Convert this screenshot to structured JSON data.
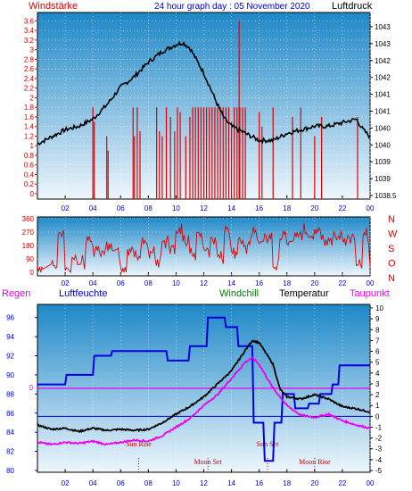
{
  "header": {
    "left_label": "Windstärke",
    "title": "24 hour graph day : 05 November 2020",
    "right_label": "Luftdruck"
  },
  "colors": {
    "wind": "#dd0000",
    "pressure": "#000000",
    "humidity": "#0000dd",
    "windchill": "#008000",
    "temperature": "#000000",
    "dewpoint": "#ee00ee",
    "sky_top": "#1e88c8",
    "sky_bottom": "#eef6fc"
  },
  "chart_data": [
    {
      "type": "line",
      "title": "24 hour graph day : 05 November 2020",
      "x_tick_labels": [
        "02",
        "04",
        "06",
        "08",
        "10",
        "12",
        "14",
        "16",
        "18",
        "20",
        "22",
        "00"
      ],
      "left_axis": {
        "label": "Windstärke",
        "ylim": [
          0,
          3.7
        ],
        "ticks": [
          "0",
          "0.2",
          "0.4",
          "0.6",
          "0.8",
          "1",
          "1.2",
          "1.4",
          "1.6",
          "1.8",
          "2",
          "2.2",
          "2.4",
          "2.6",
          "2.8",
          "3",
          "3.2",
          "3.4",
          "3.6"
        ]
      },
      "right_axis": {
        "label": "Luftdruck",
        "ylim": [
          1038.5,
          1043.5
        ],
        "ticks": [
          "1043",
          "1043",
          "1042",
          "1042",
          "1041",
          "1041",
          "1040",
          "1040",
          "1039",
          "1039",
          "1038.5"
        ]
      },
      "series": [
        {
          "name": "Luftdruck",
          "axis": "right",
          "x": [
            0,
            1,
            2,
            3,
            4,
            5,
            6,
            7,
            8,
            9,
            10,
            10.5,
            11,
            12,
            13,
            13.5,
            14,
            14.5,
            15,
            16,
            17,
            18,
            19,
            20,
            21,
            22,
            23,
            23.5,
            24
          ],
          "values": [
            1039.9,
            1040.1,
            1040.3,
            1040.4,
            1040.6,
            1041.0,
            1041.5,
            1041.8,
            1042.2,
            1042.5,
            1042.7,
            1042.75,
            1042.6,
            1041.9,
            1041.0,
            1040.6,
            1040.4,
            1040.3,
            1040.2,
            1040.0,
            1040.0,
            1040.2,
            1040.3,
            1040.4,
            1040.4,
            1040.5,
            1040.6,
            1040.3,
            1040.1
          ]
        },
        {
          "name": "Windstärke",
          "axis": "left",
          "x": [
            4.0,
            4.1,
            5.0,
            5.1,
            6.9,
            7.0,
            7.2,
            7.4,
            8.6,
            8.8,
            9.0,
            9.3,
            9.6,
            9.9,
            10.1,
            10.3,
            10.7,
            11.0,
            11.2,
            11.4,
            11.6,
            11.8,
            12.0,
            12.2,
            12.4,
            12.6,
            12.8,
            13.0,
            13.2,
            13.4,
            13.6,
            13.8,
            14.0,
            14.2,
            14.4,
            14.55,
            14.6,
            14.8,
            15.0,
            16.0,
            16.2,
            17.0,
            18.4,
            19.0,
            20.0,
            20.5,
            23.1
          ],
          "values": [
            1.8,
            1.5,
            1.2,
            0.9,
            1.8,
            1.2,
            1.8,
            1.3,
            1.8,
            1.3,
            1.2,
            1.8,
            1.6,
            1.3,
            1.8,
            1.7,
            1.2,
            1.6,
            1.8,
            1.8,
            1.8,
            1.8,
            1.8,
            1.8,
            1.8,
            1.8,
            1.8,
            1.8,
            1.8,
            1.8,
            1.8,
            1.8,
            1.5,
            1.8,
            1.8,
            3.6,
            1.8,
            1.8,
            1.8,
            1.7,
            1.4,
            1.8,
            1.6,
            1.8,
            1.2,
            1.6,
            1.6
          ]
        }
      ]
    },
    {
      "type": "line",
      "title": "",
      "x_tick_labels": [
        "02",
        "04",
        "06",
        "08",
        "10",
        "12",
        "14",
        "16",
        "18",
        "20",
        "22",
        "00"
      ],
      "left_axis": {
        "label": "",
        "ylim": [
          0,
          360
        ],
        "ticks": [
          "0",
          "90",
          "180",
          "270",
          "360"
        ]
      },
      "right_axis": {
        "label": "",
        "ticks": [
          "N",
          "W",
          "S",
          "O",
          "N"
        ]
      },
      "series": [
        {
          "name": "Windrichtung",
          "axis": "left",
          "x": [
            0,
            1,
            1.5,
            2,
            2.5,
            3,
            3.5,
            4,
            4.5,
            5,
            5.5,
            6,
            6.5,
            7,
            7.5,
            8,
            8.5,
            9,
            9.5,
            10,
            10.5,
            11,
            11.5,
            12,
            12.5,
            13,
            13.5,
            14,
            14.5,
            15,
            15.5,
            16,
            16.5,
            17,
            17.5,
            18,
            18.5,
            19,
            19.5,
            20,
            20.5,
            21,
            21.5,
            22,
            22.5,
            23,
            23.5,
            24
          ],
          "values": [
            40,
            40,
            270,
            20,
            100,
            60,
            200,
            160,
            130,
            200,
            150,
            40,
            160,
            100,
            200,
            140,
            80,
            220,
            180,
            270,
            200,
            120,
            260,
            160,
            220,
            100,
            280,
            150,
            220,
            180,
            260,
            200,
            230,
            40,
            240,
            200,
            230,
            270,
            250,
            300,
            230,
            230,
            230,
            230,
            230,
            40,
            240,
            30
          ]
        }
      ]
    },
    {
      "type": "line",
      "title": "",
      "legend": [
        "Regen",
        "Luftfeuchte",
        "Windchill",
        "Temperatur",
        "Taupunkt"
      ],
      "x_tick_labels": [
        "02",
        "04",
        "06",
        "08",
        "10",
        "12",
        "14",
        "16",
        "18",
        "20",
        "22",
        "00"
      ],
      "left_axis": {
        "label": "Luftfeuchte",
        "ylim": [
          80,
          97
        ],
        "ticks": [
          "80",
          "82",
          "84",
          "86",
          "88",
          "90",
          "92",
          "94",
          "96"
        ]
      },
      "right_axis": {
        "label": "Temperatur",
        "ylim": [
          -5,
          10
        ],
        "ticks": [
          "-5",
          "-4",
          "-3",
          "-2",
          "-1",
          "0",
          "1",
          "2",
          "3",
          "4",
          "5",
          "6",
          "7",
          "8",
          "9",
          "10"
        ]
      },
      "rain_zero_label": "0",
      "annotations": [
        {
          "label": "Sun Rise",
          "x": 7.3
        },
        {
          "label": "Moon Set",
          "x": 12.3
        },
        {
          "label": "Sun Set",
          "x": 16.6
        },
        {
          "label": "Moon Rise",
          "x": 20.0
        }
      ],
      "series": [
        {
          "name": "Luftfeuchte",
          "axis": "left",
          "x": [
            0,
            2,
            2.1,
            4,
            4.1,
            5.3,
            5.4,
            9.3,
            9.4,
            10.9,
            11,
            12.2,
            12.3,
            13.5,
            13.6,
            14.4,
            14.5,
            15.5,
            15.6,
            16.3,
            16.4,
            17.0,
            17.1,
            17.6,
            17.7,
            18.5,
            18.6,
            19.5,
            19.6,
            20.3,
            20.4,
            21.2,
            21.3,
            21.7,
            21.8,
            24
          ],
          "values": [
            89,
            89,
            90,
            90,
            92,
            92,
            92.5,
            92.5,
            91.5,
            91.5,
            93,
            93,
            96,
            96,
            95,
            95,
            93,
            93,
            85,
            85,
            81,
            81,
            85,
            85,
            88,
            88,
            86.5,
            86.5,
            87,
            87,
            88,
            88,
            89,
            89,
            91,
            91
          ]
        },
        {
          "name": "Temperatur",
          "axis": "right",
          "x": [
            0,
            1,
            2,
            3,
            4,
            5,
            6,
            7,
            8,
            9,
            10,
            11,
            12,
            13,
            14,
            15,
            15.5,
            16,
            17,
            17.5,
            18,
            19,
            20,
            21,
            22,
            23,
            24
          ],
          "values": [
            -0.8,
            -1.2,
            -1.1,
            -1.4,
            -1.1,
            -1.3,
            -1.2,
            -1.3,
            -1.2,
            -0.6,
            0.2,
            0.9,
            1.8,
            3.0,
            4.2,
            6.1,
            7.0,
            6.8,
            4.8,
            2.5,
            1.8,
            1.6,
            2.0,
            1.6,
            0.9,
            0.7,
            0.4
          ]
        },
        {
          "name": "Taupunkt",
          "axis": "right",
          "x": [
            0,
            1,
            2,
            3,
            4,
            5,
            6,
            7,
            8,
            9,
            10,
            11,
            12,
            13,
            14,
            15,
            15.5,
            16,
            17,
            18,
            19,
            20,
            21,
            22,
            23,
            24
          ],
          "values": [
            -2.4,
            -2.6,
            -2.4,
            -2.5,
            -2.3,
            -2.6,
            -2.4,
            -2.2,
            -2.3,
            -1.8,
            -1.0,
            -0.2,
            1.0,
            2.0,
            3.5,
            5.0,
            5.4,
            4.8,
            2.6,
            1.0,
            0.1,
            -0.1,
            0.2,
            -0.4,
            -0.8,
            -1.1
          ]
        },
        {
          "name": "Windchill",
          "axis": "right",
          "x": [
            0,
            24
          ],
          "values": [
            0,
            0
          ]
        }
      ]
    }
  ]
}
